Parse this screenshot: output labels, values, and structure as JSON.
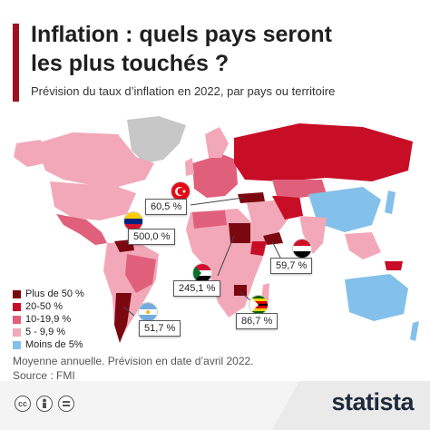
{
  "header": {
    "title_line1": "Inflation : quels pays seront",
    "title_line2": "les plus touchés ?",
    "subtitle": "Prévision du taux d’inflation en 2022, par pays ou territoire"
  },
  "map": {
    "callouts": [
      {
        "id": "turkey",
        "value": "60,5 %"
      },
      {
        "id": "venezuela",
        "value": "500,0 %"
      },
      {
        "id": "yemen",
        "value": "59,7 %"
      },
      {
        "id": "sudan",
        "value": "245,1 %"
      },
      {
        "id": "zimbabwe",
        "value": "86,7 %"
      },
      {
        "id": "argentina",
        "value": "51,7 %"
      }
    ]
  },
  "legend": {
    "items": [
      {
        "label": "Plus de 50 %",
        "color": "#7b0711"
      },
      {
        "label": "20-50 %",
        "color": "#c70e26"
      },
      {
        "label": "10-19,9 %",
        "color": "#e0607c"
      },
      {
        "label": "5 - 9,9 %",
        "color": "#f2a8b8"
      },
      {
        "label": "Moins de 5%",
        "color": "#83c0ea"
      }
    ]
  },
  "footer": {
    "note": "Moyenne annuelle. Prévision en date d’avril 2022.",
    "source": "Source : FMI",
    "logo": "statista",
    "cc_icons": [
      "cc-icon",
      "by-icon",
      "nd-icon"
    ]
  },
  "colors": {
    "accent": "#9b111e",
    "no_data": "#c7c7c7",
    "dark": "#7b0711",
    "red": "#c70e26",
    "mid_pink": "#e0607c",
    "light_pink": "#f2a8b8",
    "blue": "#83c0ea"
  }
}
